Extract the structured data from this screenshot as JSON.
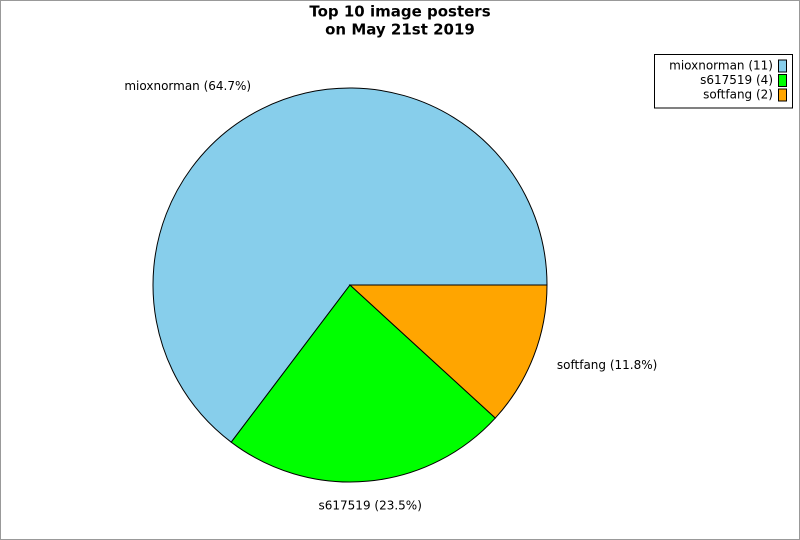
{
  "chart_data": {
    "type": "pie",
    "title": [
      "Top 10 image posters",
      "on May 21st 2019"
    ],
    "categories": [
      "mioxnorman",
      "s617519",
      "softfang"
    ],
    "values": [
      64.7,
      23.5,
      11.8
    ],
    "value_labels": [
      "mioxnorman (64.7%)",
      "s617519 (23.5%)",
      "softfang (11.8%)"
    ],
    "legend_labels": [
      "mioxnorman (11)",
      "s617519 (4)",
      "softfang (2)"
    ],
    "colors": [
      "#87ceeb",
      "#00ff00",
      "#ffa500"
    ],
    "legend": "top-right"
  }
}
